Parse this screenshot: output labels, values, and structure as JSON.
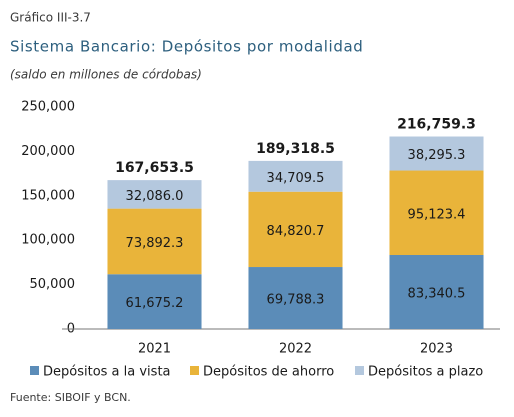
{
  "header": "Gráfico III-3.7",
  "chart_data": {
    "type": "bar",
    "stacked": true,
    "title": "Sistema Bancario: Depósitos por modalidad",
    "subtitle": "(saldo en millones de córdobas)",
    "source": "Fuente: SIBOIF y BCN.",
    "categories": [
      "2021",
      "2022",
      "2023"
    ],
    "series": [
      {
        "name": "Depósitos a la vista",
        "color": "#5b8cb8",
        "values": [
          61675.2,
          69788.3,
          83340.5
        ],
        "value_labels": [
          "61,675.2",
          "69,788.3",
          "83,340.5"
        ]
      },
      {
        "name": "Depósitos de ahorro",
        "color": "#e9b43a",
        "values": [
          73892.3,
          84820.7,
          95123.4
        ],
        "value_labels": [
          "73,892.3",
          "84,820.7",
          "95,123.4"
        ]
      },
      {
        "name": "Depósitos a plazo",
        "color": "#b4c8de",
        "values": [
          32086.0,
          34709.5,
          38295.3
        ],
        "value_labels": [
          "32,086.0",
          "34,709.5",
          "38,295.3"
        ]
      }
    ],
    "totals": [
      167653.5,
      189318.5,
      216759.3
    ],
    "total_labels": [
      "167,653.5",
      "189,318.5",
      "216,759.3"
    ],
    "ylim": [
      0,
      250000
    ],
    "yticks": [
      0,
      {
        "value": 50000,
        "label": "50,000"
      },
      {
        "value": 100000,
        "label": "100,000"
      },
      {
        "value": 150000,
        "label": "150,000"
      },
      {
        "value": 200000,
        "label": "200,000"
      },
      {
        "value": 250000,
        "label": "250,000"
      }
    ],
    "grid": false,
    "legend": "bottom"
  }
}
